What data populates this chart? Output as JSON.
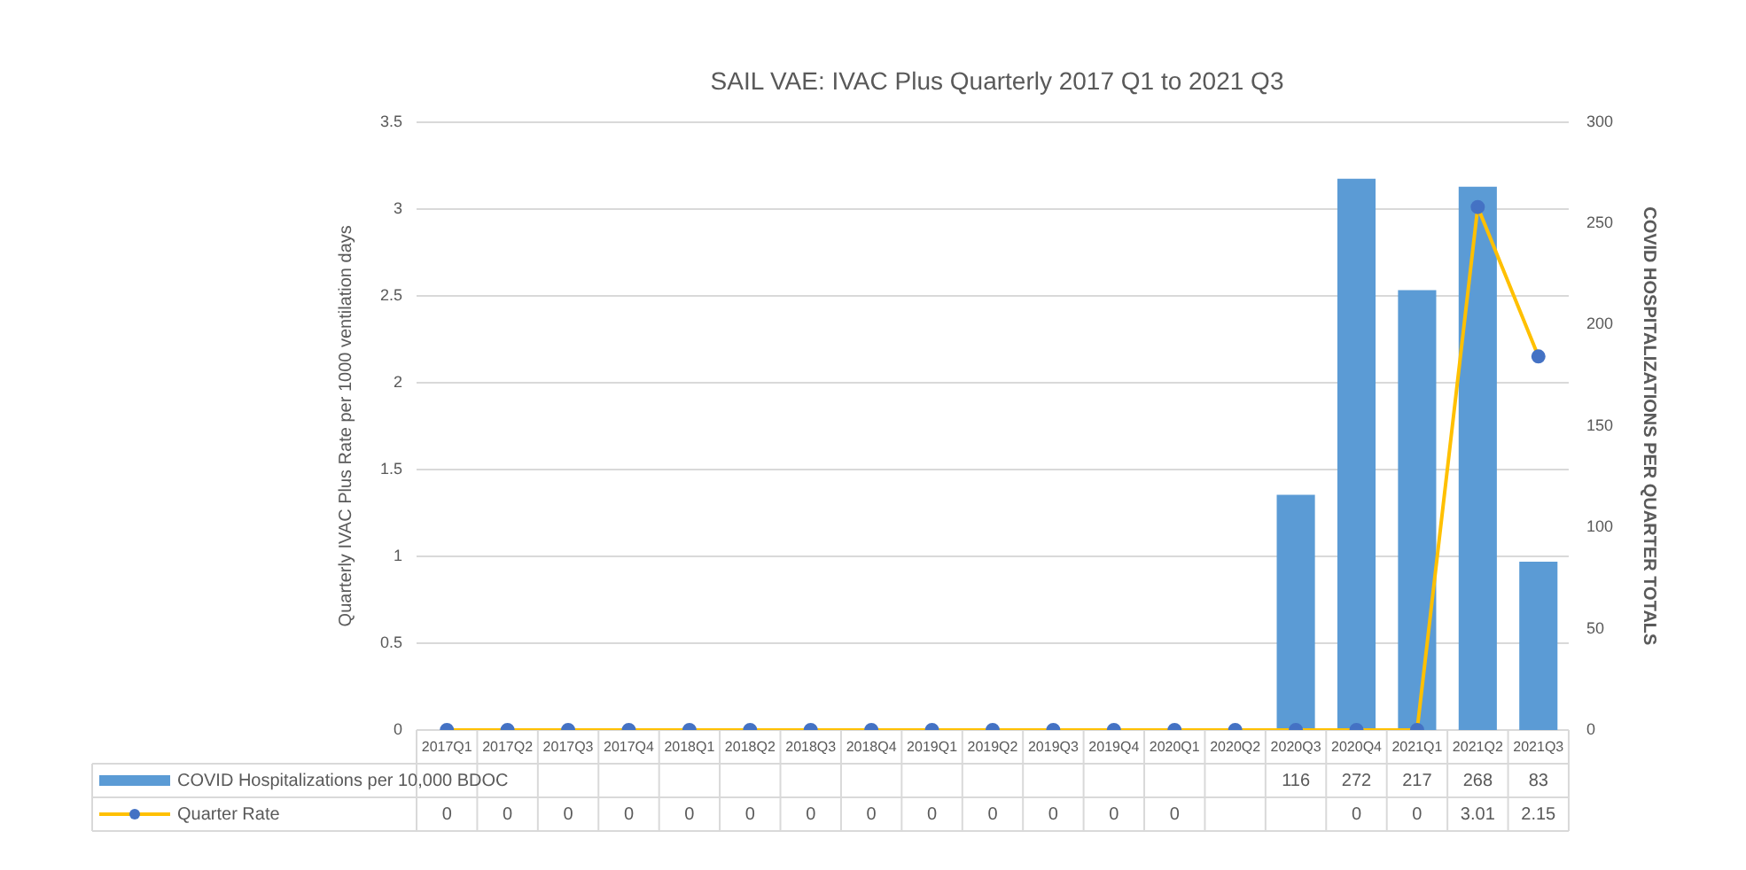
{
  "chart_data": {
    "type": "bar",
    "title": "SAIL VAE: IVAC Plus Quarterly 2017 Q1 to 2021 Q3",
    "ylabel": "Quarterly IVAC Plus Rate per 1000 ventilation days",
    "y2label": "COVID HOSPITALIZATIONS PER QUARTER TOTALS",
    "categories": [
      "2017Q1",
      "2017Q2",
      "2017Q3",
      "2017Q4",
      "2018Q1",
      "2018Q2",
      "2018Q3",
      "2018Q4",
      "2019Q1",
      "2019Q2",
      "2019Q3",
      "2019Q4",
      "2020Q1",
      "2020Q2",
      "2020Q3",
      "2020Q4",
      "2021Q1",
      "2021Q2",
      "2021Q3"
    ],
    "series": [
      {
        "name": "COVID Hospitalizations per 10,000 BDOC",
        "axis": "y2",
        "color": "#5b9bd5",
        "values": [
          null,
          null,
          null,
          null,
          null,
          null,
          null,
          null,
          null,
          null,
          null,
          null,
          null,
          null,
          116,
          272,
          217,
          268,
          83
        ],
        "value_labels": [
          null,
          null,
          null,
          null,
          null,
          null,
          null,
          null,
          null,
          null,
          null,
          null,
          null,
          null,
          "116",
          "272",
          "217",
          "268",
          "83"
        ]
      },
      {
        "name": "Quarter Rate",
        "type": "line",
        "axis": "y",
        "color": "#ffc000",
        "colors": [
          "#4472c4",
          "#4472c4",
          "#4472c4",
          "#4472c4",
          "#4472c4",
          "#4472c4",
          "#4472c4",
          "#4472c4",
          "#4472c4",
          "#4472c4",
          "#4472c4",
          "#4472c4",
          "#4472c4",
          "#4472c4",
          "#4472c4",
          "#4472c4",
          "#4472c4",
          "#4472c4",
          "#4472c4"
        ],
        "values": [
          0,
          0,
          0,
          0,
          0,
          0,
          0,
          0,
          0,
          0,
          0,
          0,
          0,
          0,
          0,
          0,
          0,
          3.01,
          2.15
        ],
        "value_labels": [
          "0",
          "0",
          "0",
          "0",
          "0",
          "0",
          "0",
          "0",
          "0",
          "0",
          "0",
          "0",
          "0",
          null,
          null,
          "0",
          "0",
          "3.01",
          "2.15"
        ]
      }
    ],
    "ylim": [
      0,
      3.5
    ],
    "yticks": [
      0,
      0.5,
      1,
      1.5,
      2,
      2.5,
      3,
      3.5
    ],
    "y2lim": [
      0,
      300
    ],
    "y2ticks": [
      0,
      50,
      100,
      150,
      200,
      250,
      300
    ],
    "grid": "y",
    "legend": "bottom",
    "marker": "circle",
    "line_style": "solid"
  }
}
